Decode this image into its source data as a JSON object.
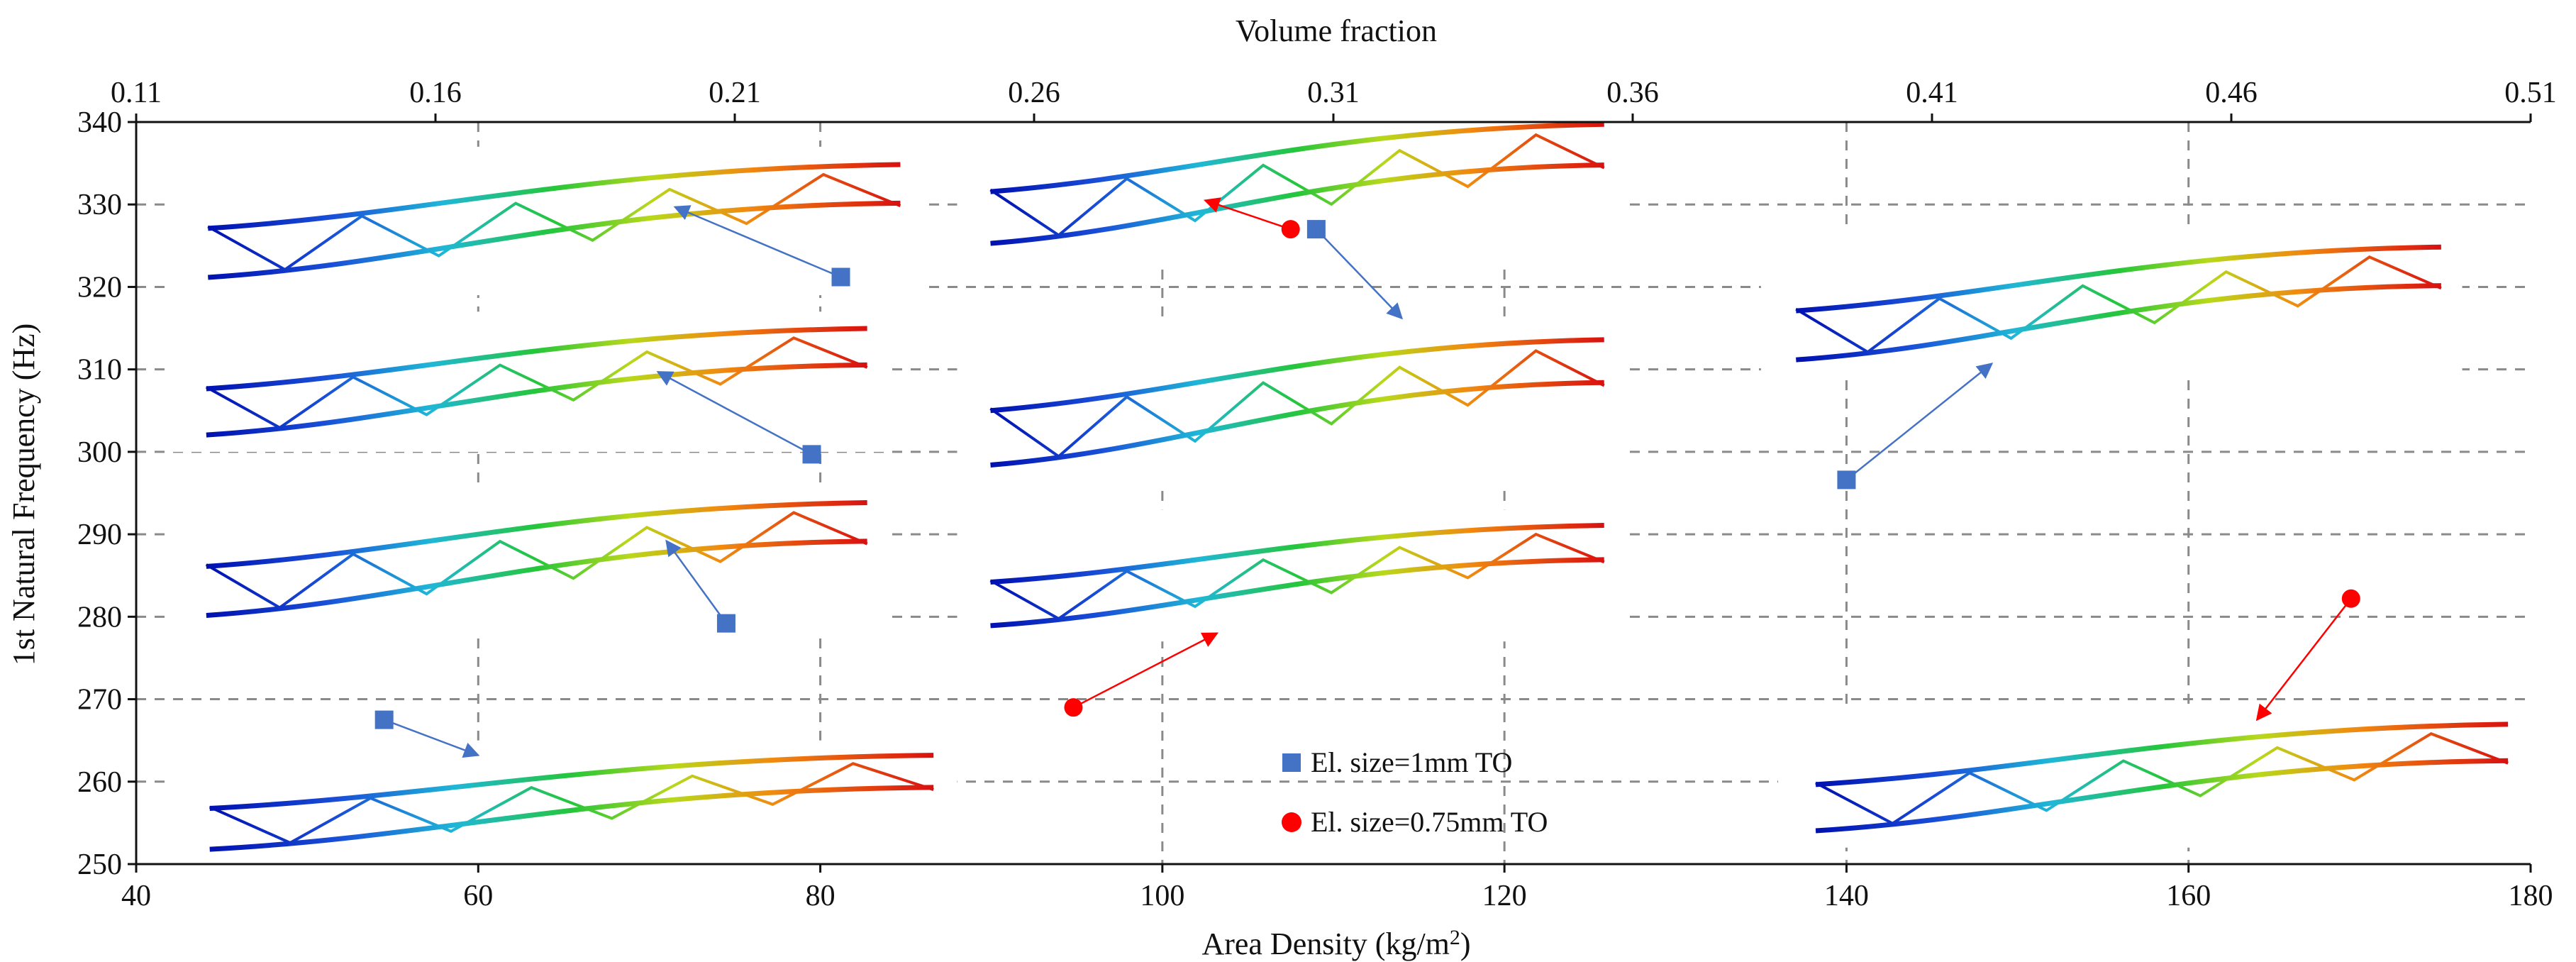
{
  "chart_data": {
    "type": "scatter",
    "title": "",
    "xlabel": "Area Density (kg/m2)",
    "xlabel_main": "Area Density (kg/m",
    "xlabel_sup": "2",
    "xlabel_end": ")",
    "ylabel": "1st Natural Frequency (Hz)",
    "top_xlabel": "Volume fraction",
    "xlim": [
      40,
      180
    ],
    "ylim": [
      250,
      340
    ],
    "x_ticks": [
      40,
      60,
      80,
      100,
      120,
      140,
      160,
      180
    ],
    "y_ticks": [
      250,
      260,
      270,
      280,
      290,
      300,
      310,
      320,
      330,
      340
    ],
    "top_ticks": [
      "0.11",
      "0.16",
      "0.21",
      "0.26",
      "0.31",
      "0.36",
      "0.41",
      "0.46",
      "0.51"
    ],
    "grid": true,
    "legend_position": "bottom-center",
    "series": [
      {
        "name": "El. size=1mm TO",
        "marker": "square",
        "color": "#4472C4",
        "points": [
          {
            "x": 54.5,
            "y": 267.5
          },
          {
            "x": 74.5,
            "y": 279.2
          },
          {
            "x": 79.5,
            "y": 299.7
          },
          {
            "x": 81.2,
            "y": 321.2
          },
          {
            "x": 109.0,
            "y": 327.0
          },
          {
            "x": 140.0,
            "y": 296.6
          }
        ]
      },
      {
        "name": "El. size=0.75mm TO",
        "marker": "circle",
        "color": "#FF0000",
        "points": [
          {
            "x": 94.8,
            "y": 269.0
          },
          {
            "x": 107.5,
            "y": 327.0
          },
          {
            "x": 169.5,
            "y": 282.2
          }
        ]
      }
    ],
    "annotations": [
      {
        "from": [
          54.5,
          267.5
        ],
        "to": [
          60.0,
          263.2
        ],
        "color": "#4472C4"
      },
      {
        "from": [
          74.5,
          279.2
        ],
        "to": [
          71.0,
          289.2
        ],
        "color": "#4472C4"
      },
      {
        "from": [
          79.5,
          299.7
        ],
        "to": [
          70.5,
          309.7
        ],
        "color": "#4472C4"
      },
      {
        "from": [
          81.2,
          321.2
        ],
        "to": [
          71.5,
          329.7
        ],
        "color": "#4472C4"
      },
      {
        "from": [
          109.0,
          327.0
        ],
        "to": [
          114.0,
          316.2
        ],
        "color": "#4472C4"
      },
      {
        "from": [
          140.0,
          296.6
        ],
        "to": [
          148.5,
          310.7
        ],
        "color": "#4472C4"
      },
      {
        "from": [
          94.8,
          269.0
        ],
        "to": [
          103.2,
          278.0
        ],
        "color": "#FF0000"
      },
      {
        "from": [
          107.5,
          327.0
        ],
        "to": [
          102.5,
          330.5
        ],
        "color": "#FF0000"
      },
      {
        "from": [
          169.5,
          282.2
        ],
        "to": [
          164.0,
          267.5
        ],
        "color": "#FF0000"
      }
    ]
  }
}
